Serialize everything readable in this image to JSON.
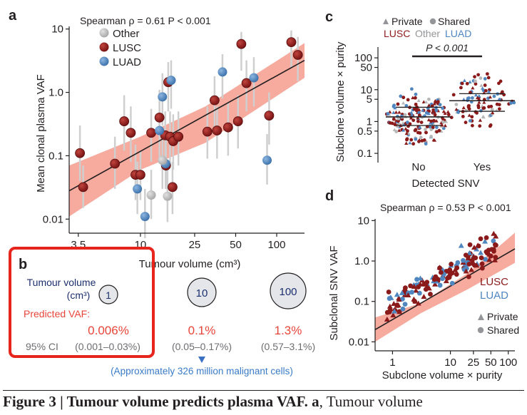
{
  "colors": {
    "lusc": "#8b1a1a",
    "luad": "#4f86c0",
    "other": "#b8b8b8",
    "ci_band": "#f6a194",
    "highlight_box": "#e8251d",
    "predicted_red": "#e8453a",
    "circle_fill": "#e4e6ea"
  },
  "chart_data": [
    {
      "panel": "a",
      "type": "scatter",
      "xscale": "log",
      "yscale": "log",
      "xlim": [
        3,
        160
      ],
      "ylim": [
        0.006,
        11
      ],
      "xticks": [
        "3.5",
        "10",
        "25",
        "50",
        "100"
      ],
      "xtick_values": [
        3.5,
        10,
        25,
        50,
        100
      ],
      "yticks": [
        "10",
        "1.0",
        "0.1",
        "0.01"
      ],
      "ytick_values": [
        10,
        1,
        0.1,
        0.01
      ],
      "xlabel": "Tumour volume (cm³)",
      "ylabel": "Mean clonal plasma VAF",
      "stat_text": "Spearman ρ = 0.61 P < 0.001",
      "legend": [
        "Other",
        "LUSC",
        "LUAD"
      ],
      "regression": {
        "x": [
          3,
          160
        ],
        "y": [
          0.028,
          3.2
        ]
      },
      "ci_band": {
        "x": [
          3,
          10,
          30,
          160
        ],
        "upper": [
          0.07,
          0.2,
          0.6,
          6.0
        ],
        "lower": [
          0.011,
          0.06,
          0.16,
          1.7
        ]
      },
      "series": [
        {
          "name": "LUSC",
          "points": [
            [
              3.6,
              0.11,
              0.04,
              0.3
            ],
            [
              3.8,
              0.032,
              0.015,
              0.07
            ],
            [
              6.5,
              0.075,
              0.03,
              0.2
            ],
            [
              7.6,
              0.35,
              0.12,
              0.9
            ],
            [
              8.5,
              0.23,
              0.08,
              0.6
            ],
            [
              9.2,
              0.05,
              0.02,
              0.15
            ],
            [
              10.0,
              0.05,
              0.02,
              0.12
            ],
            [
              12.0,
              0.23,
              0.08,
              0.55
            ],
            [
              13.8,
              0.4,
              0.15,
              1.1
            ],
            [
              15.2,
              0.21,
              0.08,
              0.5
            ],
            [
              15.4,
              0.07,
              0.03,
              0.2
            ],
            [
              16.0,
              1.45,
              0.5,
              3.0
            ],
            [
              16.5,
              0.2,
              0.07,
              0.5
            ],
            [
              17.2,
              0.032,
              0.012,
              0.08
            ],
            [
              17.4,
              0.17,
              0.06,
              0.45
            ],
            [
              19.0,
              0.2,
              0.07,
              0.5
            ],
            [
              31.0,
              0.24,
              0.09,
              0.6
            ],
            [
              35.0,
              0.75,
              0.28,
              1.8
            ],
            [
              36.5,
              0.25,
              0.09,
              0.6
            ],
            [
              44.0,
              0.28,
              0.1,
              0.7
            ],
            [
              52.0,
              0.35,
              0.13,
              0.9
            ],
            [
              55.0,
              5.8,
              2.2,
              9.0
            ],
            [
              60.0,
              1.4,
              0.5,
              3.2
            ],
            [
              88.0,
              0.43,
              0.15,
              1.0
            ],
            [
              128.0,
              6.2,
              2.5,
              9.5
            ],
            [
              143.0,
              3.9,
              1.5,
              7.5
            ]
          ]
        },
        {
          "name": "LUAD",
          "points": [
            [
              9.5,
              0.03,
              0.012,
              0.08
            ],
            [
              10.8,
              0.011,
              0.005,
              0.03
            ],
            [
              13.8,
              0.25,
              0.09,
              0.65
            ],
            [
              14.5,
              0.85,
              0.3,
              2.0
            ],
            [
              15.3,
              0.075,
              0.03,
              0.2
            ],
            [
              16.8,
              1.55,
              0.55,
              3.2
            ],
            [
              40.0,
              2.1,
              0.8,
              4.0
            ],
            [
              68.0,
              1.7,
              0.6,
              3.6
            ],
            [
              85.0,
              0.085,
              0.035,
              0.22
            ]
          ]
        },
        {
          "name": "Other",
          "points": [
            [
              12.0,
              0.024,
              0.01,
              0.06
            ],
            [
              14.5,
              0.085,
              0.03,
              0.22
            ],
            [
              15.8,
              0.023,
              0.009,
              0.06
            ]
          ]
        }
      ]
    },
    {
      "panel": "b",
      "type": "table",
      "labels": {
        "volume": "Tumour volume",
        "volume_unit": "(cm³)",
        "predicted": "Predicted VAF:",
        "ci": "95% CI"
      },
      "columns": [
        {
          "volume": "1",
          "vaf": "0.006%",
          "ci": "(0.001–0.03%)"
        },
        {
          "volume": "10",
          "vaf": "0.1%",
          "ci": "(0.05–0.17%)"
        },
        {
          "volume": "100",
          "vaf": "1.3%",
          "ci": "(0.57–3.1%)"
        }
      ],
      "note": "(Approximately 326 million malignant cells)"
    },
    {
      "panel": "c",
      "type": "scatter",
      "yscale": "log",
      "ylim": [
        0.07,
        160
      ],
      "categories": [
        "No",
        "Yes"
      ],
      "yticks": [
        "100",
        "50",
        "10",
        "5",
        "1",
        "0.5",
        "0.1"
      ],
      "ytick_values": [
        100,
        50,
        10,
        5,
        1,
        0.5,
        0.1
      ],
      "xlabel": "Detected SNV",
      "ylabel": "Subclone volume × purity",
      "legend_shapes": [
        "Private",
        "Shared"
      ],
      "legend_colors": [
        "LUSC",
        "Other",
        "LUAD"
      ],
      "significance": "P < 0.001",
      "groups": [
        {
          "category": "No",
          "median": 1.4,
          "q1": 0.75,
          "q3": 2.8,
          "n_points": 190,
          "spread_min": 0.2,
          "spread_max": 11
        },
        {
          "category": "Yes",
          "median": 4.5,
          "q1": 2.1,
          "q3": 7.5,
          "n_points": 100,
          "spread_min": 0.3,
          "spread_max": 42
        }
      ]
    },
    {
      "panel": "d",
      "type": "scatter",
      "xscale": "log",
      "yscale": "log",
      "xlim": [
        0.5,
        130
      ],
      "ylim": [
        0.006,
        11
      ],
      "xticks": [
        "1",
        "10",
        "25",
        "50",
        "100"
      ],
      "xtick_values": [
        1,
        10,
        25,
        50,
        100
      ],
      "yticks": [
        "10",
        "1.0",
        "0.1",
        "0.01"
      ],
      "ytick_values": [
        10,
        1,
        0.1,
        0.01
      ],
      "xlabel": "Subclone volume × purity",
      "ylabel": "Subclonal SNV VAF",
      "stat_text": "Spearman ρ = 0.53 P < 0.001",
      "legend_colors": [
        "LUSC",
        "LUAD"
      ],
      "legend_shapes": [
        "Private",
        "Shared"
      ],
      "regression": {
        "x": [
          0.5,
          130
        ],
        "y": [
          0.02,
          2.0
        ]
      },
      "ci_band": {
        "x": [
          0.5,
          3,
          20,
          130
        ],
        "upper": [
          0.04,
          0.09,
          0.5,
          5.0
        ],
        "lower": [
          0.01,
          0.05,
          0.2,
          0.9
        ]
      }
    }
  ],
  "caption": {
    "bold": "Figure 3 | Tumour volume predicts plasma VAF. a",
    "text": ", Tumour volume"
  }
}
